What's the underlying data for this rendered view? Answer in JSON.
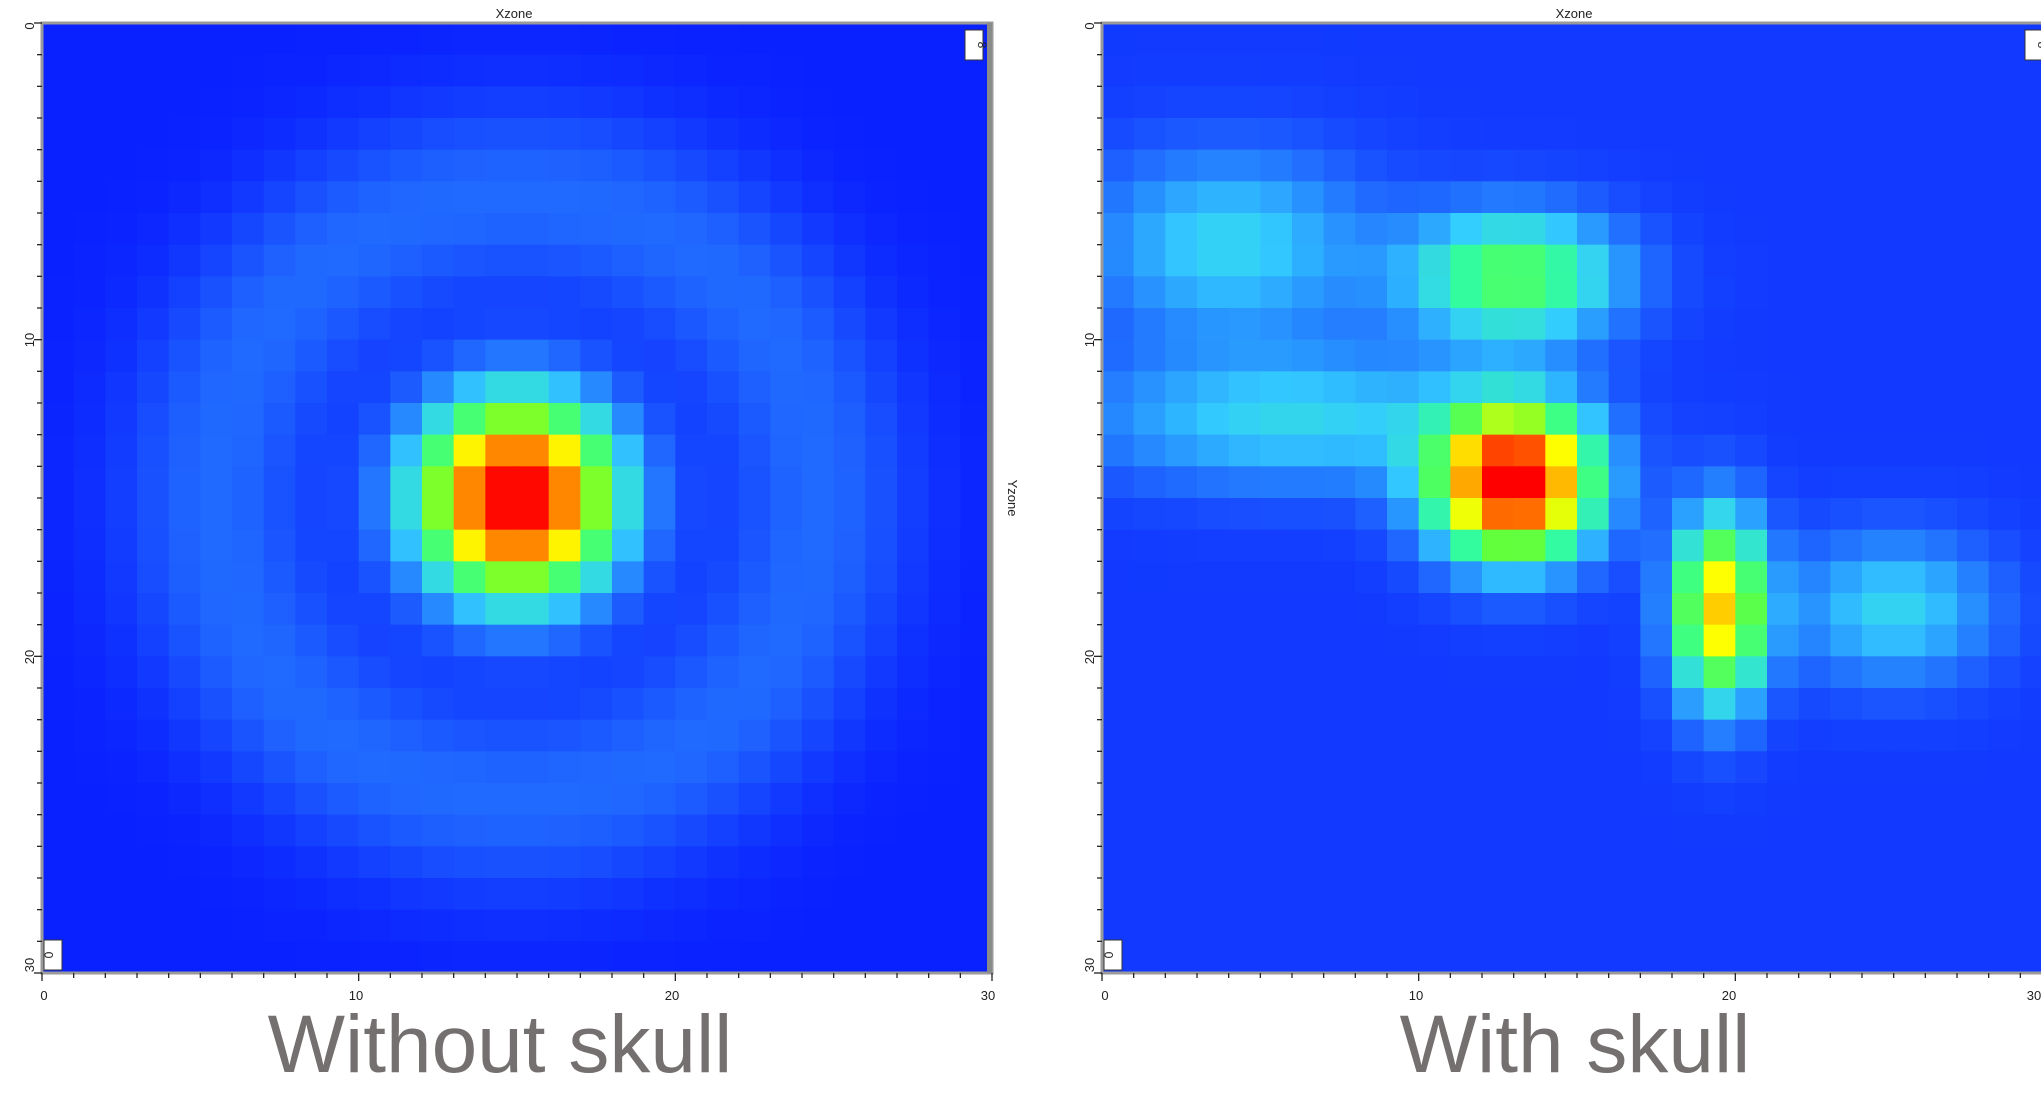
{
  "colors": {
    "colormap": [
      "#0000ff",
      "#1f66ff",
      "#33ccff",
      "#33ff99",
      "#66ff33",
      "#ffff00",
      "#ffaa00",
      "#ff4400",
      "#ff0000"
    ],
    "caption": "#757070",
    "frame": "#222222"
  },
  "chart_data": [
    {
      "type": "heatmap",
      "title": "Xzone",
      "right_axis_label": "Yzone",
      "corner_top_right": "8",
      "corner_bottom_left": "0",
      "x_ticks": [
        "0",
        "10",
        "20",
        "30"
      ],
      "y_ticks": [
        "0",
        "10",
        "20",
        "30"
      ],
      "xlim": [
        0,
        30
      ],
      "ylim": [
        0,
        30
      ],
      "y_direction": "down",
      "grid": false,
      "caption": "Without skull",
      "cell_value_range": [
        0,
        1
      ],
      "sources": [
        {
          "x": 15,
          "y": 15,
          "amp": 1.0,
          "sx": 2.1,
          "sy": 2.1
        }
      ],
      "rings": [
        {
          "x": 15,
          "y": 15,
          "radius": 9.5,
          "width": 2.2,
          "amp": 0.09
        }
      ],
      "background": 0.04
    },
    {
      "type": "heatmap",
      "title": "Xzone",
      "corner_top_right": "8",
      "corner_bottom_left": "0",
      "x_ticks": [
        "0",
        "10",
        "20",
        "30"
      ],
      "y_ticks": [
        "0",
        "10",
        "20",
        "30"
      ],
      "xlim": [
        0,
        30
      ],
      "ylim": [
        0,
        30
      ],
      "y_direction": "down",
      "grid": false,
      "caption": "With skull",
      "cell_value_range": [
        0,
        1
      ],
      "sources": [
        {
          "x": 13,
          "y": 14.5,
          "amp": 0.95,
          "sx": 1.7,
          "sy": 1.6
        },
        {
          "x": 19.5,
          "y": 18.5,
          "amp": 0.62,
          "sx": 1.0,
          "sy": 2.0
        },
        {
          "x": 13,
          "y": 8,
          "amp": 0.38,
          "sx": 2.3,
          "sy": 1.4
        },
        {
          "x": 4,
          "y": 7,
          "amp": 0.2,
          "sx": 3.0,
          "sy": 2.0
        },
        {
          "x": 6,
          "y": 12.5,
          "amp": 0.2,
          "sx": 4.5,
          "sy": 1.5
        },
        {
          "x": 25,
          "y": 18.5,
          "amp": 0.2,
          "sx": 2.2,
          "sy": 1.6
        }
      ],
      "rings": [],
      "background": 0.07
    }
  ]
}
